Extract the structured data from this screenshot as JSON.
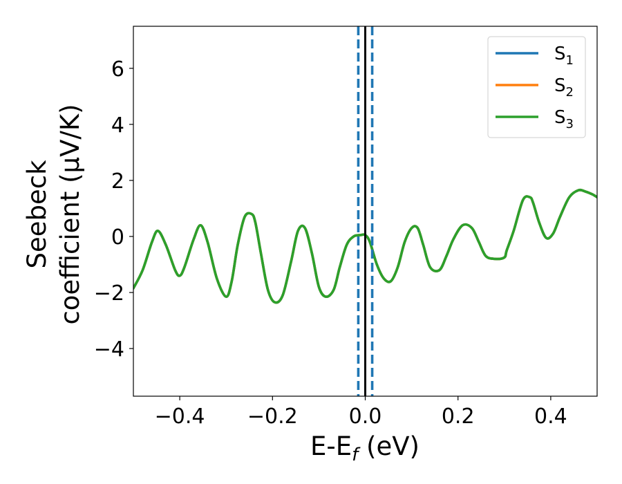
{
  "chart_data": {
    "type": "line",
    "xlabel": "E-E",
    "xlabel_sub": "f",
    "xlabel_unit": "(eV)",
    "ylabel_line1": "Seebeck",
    "ylabel_line2": "coefficient  (μV/K)",
    "xlim": [
      -0.5,
      0.5
    ],
    "ylim": [
      -5.7,
      7.5
    ],
    "xticks": [
      -0.4,
      -0.2,
      0.0,
      0.2,
      0.4
    ],
    "xtick_labels": [
      "−0.4",
      "−0.2",
      "0.0",
      "0.2",
      "0.4"
    ],
    "yticks": [
      -4,
      -2,
      0,
      2,
      4,
      6
    ],
    "ytick_labels": [
      "−4",
      "−2",
      "0",
      "2",
      "4",
      "6"
    ],
    "grid": false,
    "legend_position": "top-right",
    "x": [
      -0.5,
      -0.48,
      -0.46,
      -0.447,
      -0.43,
      -0.41,
      -0.4,
      -0.39,
      -0.37,
      -0.355,
      -0.34,
      -0.32,
      -0.3,
      -0.288,
      -0.275,
      -0.26,
      -0.245,
      -0.237,
      -0.225,
      -0.21,
      -0.195,
      -0.178,
      -0.16,
      -0.145,
      -0.13,
      -0.115,
      -0.1,
      -0.085,
      -0.068,
      -0.055,
      -0.04,
      -0.025,
      -0.01,
      0.0,
      0.01,
      0.025,
      0.04,
      0.055,
      0.07,
      0.085,
      0.1,
      0.113,
      0.125,
      0.14,
      0.16,
      0.175,
      0.19,
      0.21,
      0.23,
      0.245,
      0.26,
      0.28,
      0.3,
      0.305,
      0.32,
      0.34,
      0.355,
      0.362,
      0.375,
      0.39,
      0.405,
      0.42,
      0.44,
      0.46,
      0.475,
      0.49,
      0.5
    ],
    "series": [
      {
        "name": "S",
        "name_sub": "1",
        "color": "#1f77b4",
        "values": [
          -1.85,
          -1.2,
          -0.2,
          0.2,
          -0.3,
          -1.2,
          -1.4,
          -1.1,
          -0.1,
          0.4,
          -0.2,
          -1.5,
          -2.15,
          -1.6,
          -0.3,
          0.7,
          0.8,
          0.5,
          -0.6,
          -1.9,
          -2.35,
          -2.1,
          -0.9,
          0.2,
          0.3,
          -0.6,
          -1.8,
          -2.15,
          -1.9,
          -1.1,
          -0.3,
          0.0,
          0.05,
          0.05,
          -0.2,
          -1.0,
          -1.5,
          -1.6,
          -1.1,
          -0.2,
          0.3,
          0.3,
          -0.3,
          -1.1,
          -1.2,
          -0.7,
          -0.1,
          0.4,
          0.3,
          -0.2,
          -0.7,
          -0.8,
          -0.75,
          -0.5,
          0.2,
          1.3,
          1.4,
          1.2,
          0.5,
          -0.05,
          0.1,
          0.7,
          1.4,
          1.65,
          1.6,
          1.5,
          1.4
        ]
      },
      {
        "name": "S",
        "name_sub": "2",
        "color": "#ff7f0e",
        "values": [
          -1.85,
          -1.2,
          -0.2,
          0.2,
          -0.3,
          -1.2,
          -1.4,
          -1.1,
          -0.1,
          0.4,
          -0.2,
          -1.5,
          -2.15,
          -1.6,
          -0.3,
          0.7,
          0.8,
          0.5,
          -0.6,
          -1.9,
          -2.35,
          -2.1,
          -0.9,
          0.2,
          0.3,
          -0.6,
          -1.8,
          -2.15,
          -1.9,
          -1.1,
          -0.3,
          0.0,
          0.05,
          0.05,
          -0.2,
          -1.0,
          -1.5,
          -1.6,
          -1.1,
          -0.2,
          0.3,
          0.3,
          -0.3,
          -1.1,
          -1.2,
          -0.7,
          -0.1,
          0.4,
          0.3,
          -0.2,
          -0.7,
          -0.8,
          -0.75,
          -0.5,
          0.2,
          1.3,
          1.4,
          1.2,
          0.5,
          -0.05,
          0.1,
          0.7,
          1.4,
          1.65,
          1.6,
          1.5,
          1.4
        ]
      },
      {
        "name": "S",
        "name_sub": "3",
        "color": "#2ca02c",
        "values": [
          -1.85,
          -1.2,
          -0.2,
          0.2,
          -0.3,
          -1.2,
          -1.4,
          -1.1,
          -0.1,
          0.4,
          -0.2,
          -1.5,
          -2.15,
          -1.6,
          -0.3,
          0.7,
          0.8,
          0.5,
          -0.6,
          -1.9,
          -2.35,
          -2.1,
          -0.9,
          0.2,
          0.3,
          -0.6,
          -1.8,
          -2.15,
          -1.9,
          -1.1,
          -0.3,
          0.0,
          0.05,
          0.05,
          -0.2,
          -1.0,
          -1.5,
          -1.6,
          -1.1,
          -0.2,
          0.3,
          0.3,
          -0.3,
          -1.1,
          -1.2,
          -0.7,
          -0.1,
          0.4,
          0.3,
          -0.2,
          -0.7,
          -0.8,
          -0.75,
          -0.5,
          0.2,
          1.3,
          1.4,
          1.2,
          0.5,
          -0.05,
          0.1,
          0.7,
          1.4,
          1.65,
          1.6,
          1.5,
          1.4
        ]
      }
    ],
    "vlines": [
      {
        "x": -0.015,
        "color": "#1f77b4",
        "style": "dashed"
      },
      {
        "x": 0.015,
        "color": "#1f77b4",
        "style": "dashed"
      },
      {
        "x": 0.0,
        "color": "#000000",
        "style": "solid"
      }
    ]
  }
}
